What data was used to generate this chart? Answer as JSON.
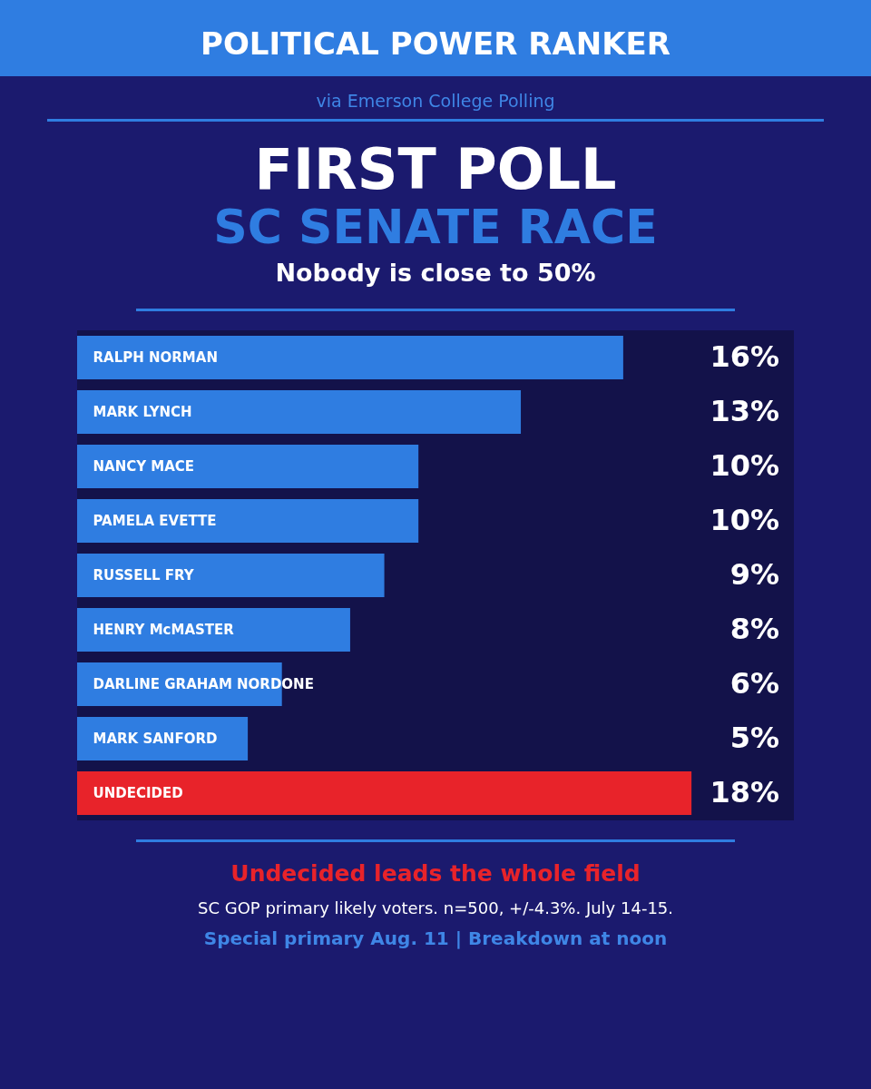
{
  "chart_data": {
    "type": "bar",
    "orientation": "horizontal",
    "title": "POLITICAL POWER RANKER",
    "subtitle": "via Emerson College Polling",
    "annotations": [
      "FIRST POLL",
      "SC SENATE RACE",
      "Nobody is close to 50%",
      "Undecided leads the whole field",
      "SC GOP primary likely voters. n=500, +/-4.3%. July 14-15.",
      "Special primary Aug. 11 | Breakdown at noon"
    ],
    "categories": [
      "RALPH NORMAN",
      "MARK LYNCH",
      "NANCY MACE",
      "PAMELA EVETTE",
      "RUSSELL FRY",
      "HENRY McMASTER",
      "DARLINE GRAHAM NORDONE",
      "MARK SANFORD",
      "UNDECIDED"
    ],
    "values": [
      16,
      13,
      10,
      10,
      9,
      8,
      6,
      5,
      18
    ],
    "colors": [
      "#2f7de1",
      "#2f7de1",
      "#2f7de1",
      "#2f7de1",
      "#2f7de1",
      "#2f7de1",
      "#2f7de1",
      "#2f7de1",
      "#e8232a"
    ],
    "value_labels": [
      "16%",
      "13%",
      "10%",
      "10%",
      "9%",
      "8%",
      "6%",
      "5%",
      "18%"
    ],
    "xlim": [
      0,
      21
    ],
    "tick_labels": "y",
    "legend": false
  }
}
